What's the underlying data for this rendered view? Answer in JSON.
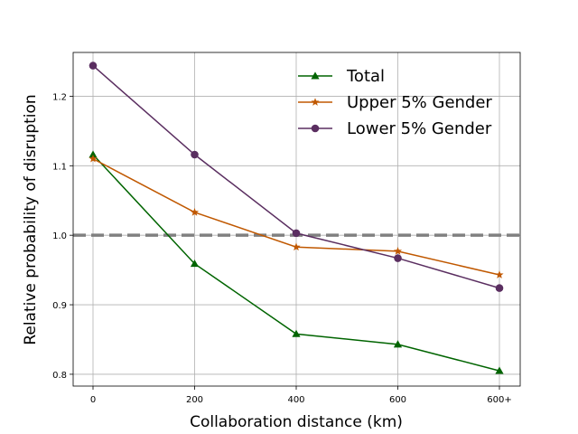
{
  "chart_data": {
    "type": "line",
    "xlabel": "Collaboration distance (km)",
    "ylabel": "Relative probability of disruption",
    "x_ticks": [
      "0",
      "200",
      "400",
      "600",
      "600+"
    ],
    "y_ticks": [
      0.8,
      0.9,
      1.0,
      1.1,
      1.2
    ],
    "y_tick_labels": [
      "0.8",
      "0.9",
      "1.0",
      "1.1",
      "1.2"
    ],
    "ylim": [
      0.783,
      1.263
    ],
    "grid": true,
    "legend_position": "top-right",
    "reference_line": {
      "y": 1.0,
      "style": "dashed",
      "color": "#808080"
    },
    "series": [
      {
        "name": "Total",
        "marker": "triangle",
        "color": "#006400",
        "values": [
          1.116,
          0.959,
          0.858,
          0.843,
          0.805
        ]
      },
      {
        "name": "Upper 5% Gender",
        "marker": "star",
        "color": "#c05800",
        "values": [
          1.11,
          1.033,
          0.983,
          0.977,
          0.943
        ]
      },
      {
        "name": "Lower 5% Gender",
        "marker": "circle",
        "color": "#5a2e60",
        "values": [
          1.244,
          1.116,
          1.003,
          0.967,
          0.924
        ]
      }
    ]
  }
}
